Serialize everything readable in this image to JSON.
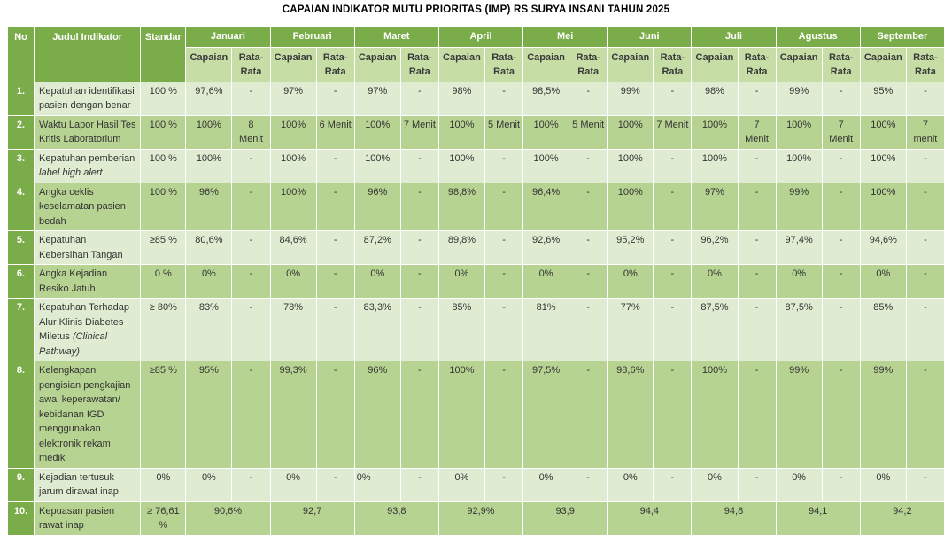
{
  "title": "CAPAIAN INDIKATOR MUTU PRIORITAS (IMP) RS SURYA INSANI TAHUN 2025",
  "colors": {
    "header_green": "#7AAC49",
    "subheader_green": "#C7DDA6",
    "row_light": "#DFECD2",
    "row_dark": "#B7D392",
    "border_white": "#FFFFFF",
    "header_text": "#FFFFFF",
    "body_text": "#333333"
  },
  "table": {
    "fixed_headers": [
      "No",
      "Judul Indikator",
      "Standar"
    ],
    "months": [
      "Januari",
      "Februari",
      "Maret",
      "April",
      "Mei",
      "Juni",
      "Juli",
      "Agustus",
      "September"
    ],
    "sub_headers": [
      "Capaian",
      "Rata-\nRata"
    ],
    "rows": [
      {
        "no": "1.",
        "judul": "Kepatuhan identifikasi pasien dengan benar",
        "judul_em": "",
        "standar": "100 %",
        "cells": [
          "97,6%",
          "-",
          "97%",
          "-",
          "97%",
          "-",
          "98%",
          "-",
          "98,5%",
          "-",
          "99%",
          "-",
          "98%",
          "-",
          "99%",
          "-",
          "95%",
          "-"
        ]
      },
      {
        "no": "2.",
        "judul": "Waktu Lapor Hasil Tes Kritis Laboratorium",
        "judul_em": "",
        "standar": "100 %",
        "cells": [
          "100%",
          "8\nMenit",
          "100%",
          "6 Menit",
          "100%",
          "7 Menit",
          "100%",
          "5 Menit",
          "100%",
          "5 Menit",
          "100%",
          "7 Menit",
          "100%",
          "7\nMenit",
          "100%",
          "7\nMenit",
          "100%",
          "7\nmenit"
        ]
      },
      {
        "no": "3.",
        "judul": "Kepatuhan pemberian ",
        "judul_em": "label high alert",
        "standar": "100 %",
        "cells": [
          "100%",
          "-",
          "100%",
          "-",
          "100%",
          "-",
          "100%",
          "-",
          "100%",
          "-",
          "100%",
          "-",
          "100%",
          "-",
          "100%",
          "-",
          "100%",
          "-"
        ]
      },
      {
        "no": "4.",
        "judul": "Angka ceklis keselamatan pasien bedah",
        "judul_em": "",
        "standar": "100 %",
        "cells": [
          "96%",
          "-",
          "100%",
          "-",
          "96%",
          "-",
          "98,8%",
          "-",
          "96,4%",
          "-",
          "100%",
          "-",
          "97%",
          "-",
          "99%",
          "-",
          "100%",
          "-"
        ]
      },
      {
        "no": "5.",
        "judul": "Kepatuhan Kebersihan Tangan",
        "judul_em": "",
        "standar": "≥85 %",
        "cells": [
          "80,6%",
          "-",
          "84,6%",
          "-",
          "87,2%",
          "-",
          "89,8%",
          "-",
          "92,6%",
          "-",
          "95,2%",
          "-",
          "96,2%",
          "-",
          "97,4%",
          "-",
          "94,6%",
          "-"
        ]
      },
      {
        "no": "6.",
        "judul": "Angka Kejadian Resiko Jatuh",
        "judul_em": "",
        "standar": "0 %",
        "cells": [
          "0%",
          "-",
          "0%",
          "-",
          "0%",
          "-",
          "0%",
          "-",
          "0%",
          "-",
          "0%",
          "-",
          "0%",
          "-",
          "0%",
          "-",
          "0%",
          "-"
        ]
      },
      {
        "no": "7.",
        "judul": "Kepatuhan Terhadap Alur Klinis Diabetes Miletus ",
        "judul_em": "(Clinical Pathway)",
        "standar": "≥ 80%",
        "cells": [
          "83%",
          "-",
          "78%",
          "-",
          "83,3%",
          "-",
          "85%",
          "-",
          "81%",
          "-",
          "77%",
          "-",
          "87,5%",
          "-",
          "87,5%",
          "-",
          "85%",
          "-"
        ]
      },
      {
        "no": "8.",
        "judul": "Kelengkapan pengisian pengkajian awal keperawatan/ kebidanan IGD menggunakan elektronik rekam medik",
        "judul_em": "",
        "standar": "≥85 %",
        "cells": [
          "95%",
          "-",
          "99,3%",
          "-",
          "96%",
          "-",
          "100%",
          "-",
          "97,5%",
          "-",
          "98,6%",
          "-",
          "100%",
          "-",
          "99%",
          "-",
          "99%",
          "-"
        ]
      },
      {
        "no": "9.",
        "judul": "Kejadian tertusuk jarum dirawat inap",
        "judul_em": "",
        "standar": "0%",
        "cells": [
          "0%",
          "-",
          "0%",
          "-",
          {
            "t": "0%",
            "align": "left"
          },
          "-",
          "0%",
          "-",
          "0%",
          "-",
          "0%",
          "-",
          "0%",
          "-",
          "0%",
          "-",
          "0%",
          "-"
        ]
      },
      {
        "no": "10.",
        "judul": "Kepuasan pasien rawat inap",
        "judul_em": "",
        "standar": "≥ 76,61\n%",
        "merged": true,
        "cells": [
          "90,6%",
          "92,7",
          "93,8",
          "92,9%",
          "93,9",
          "94,4",
          "94,8",
          "94,1",
          "94,2"
        ]
      }
    ]
  }
}
